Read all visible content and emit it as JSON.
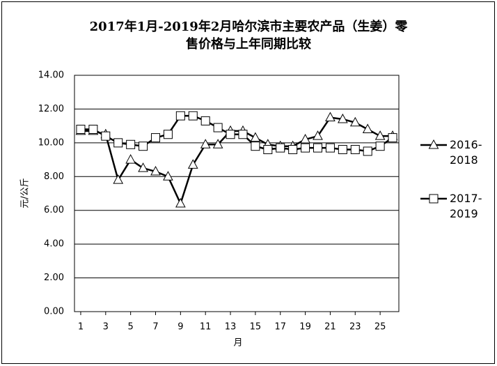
{
  "chart_data": {
    "type": "line",
    "title": [
      "2017年1月-2019年2月哈尔滨市主要农产品（生姜）零",
      "售价格与上年同期比较"
    ],
    "y_label": "元/公斤",
    "x_label": "月",
    "x": [
      1,
      2,
      3,
      4,
      5,
      6,
      7,
      8,
      9,
      10,
      11,
      12,
      13,
      14,
      15,
      16,
      17,
      18,
      19,
      20,
      21,
      22,
      23,
      24,
      25,
      26
    ],
    "xlim": [
      0.5,
      26.5
    ],
    "xticks": [
      1,
      3,
      5,
      7,
      9,
      11,
      13,
      15,
      17,
      19,
      21,
      23,
      25
    ],
    "ylim": [
      0,
      14
    ],
    "yticks": [
      {
        "value": 0,
        "label": "0.00"
      },
      {
        "value": 2,
        "label": "2.00"
      },
      {
        "value": 4,
        "label": "4.00"
      },
      {
        "value": 6,
        "label": "6.00"
      },
      {
        "value": 8,
        "label": "8.00"
      },
      {
        "value": 10,
        "label": "10.00"
      },
      {
        "value": 12,
        "label": "12.00"
      },
      {
        "value": 14,
        "label": "14.00"
      }
    ],
    "grid": true,
    "legend": "right",
    "series": [
      {
        "name": "2016-2018",
        "color": "#000000",
        "marker": "triangle",
        "values": [
          10.7,
          10.7,
          10.5,
          7.8,
          9.0,
          8.5,
          8.3,
          8.0,
          6.4,
          8.7,
          9.9,
          9.9,
          10.7,
          10.7,
          10.3,
          9.9,
          9.8,
          9.8,
          10.2,
          10.4,
          11.5,
          11.4,
          11.2,
          10.8,
          10.4,
          10.4
        ]
      },
      {
        "name": "2017-2019",
        "color": "#000000",
        "marker": "square",
        "values": [
          10.8,
          10.8,
          10.4,
          10.0,
          9.9,
          9.8,
          10.3,
          10.5,
          11.6,
          11.6,
          11.3,
          10.9,
          10.5,
          10.5,
          9.8,
          9.6,
          9.7,
          9.6,
          9.7,
          9.7,
          9.7,
          9.6,
          9.6,
          9.5,
          9.8,
          10.3
        ]
      }
    ]
  }
}
